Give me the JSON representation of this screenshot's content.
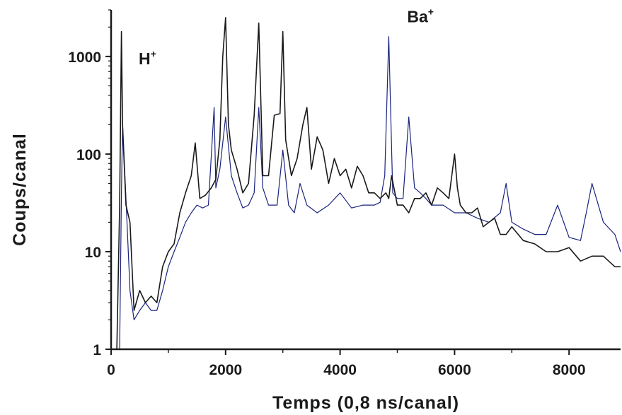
{
  "chart_data": {
    "type": "line",
    "title": "",
    "xlabel": "Temps (0,8 ns/canal)",
    "ylabel": "Coups/canal",
    "xlim": [
      0,
      8900
    ],
    "ylim": [
      1,
      3000
    ],
    "yscale": "log",
    "grid": false,
    "x_ticks": [
      0,
      2000,
      4000,
      6000,
      8000
    ],
    "x_tick_labels": [
      "0",
      "2000",
      "4000",
      "6000",
      "8000"
    ],
    "y_ticks": [
      1,
      10,
      100,
      1000
    ],
    "y_tick_labels": [
      "1",
      "10",
      "100",
      "1000"
    ],
    "annotations": [
      {
        "text": "H",
        "sup": "+",
        "x": 160,
        "y": 700
      },
      {
        "text": "Ba",
        "sup": "+",
        "x": 4850,
        "y": 1900
      }
    ],
    "series": [
      {
        "color": "#1a1a1a",
        "x": [
          0,
          100,
          150,
          180,
          200,
          260,
          330,
          400,
          500,
          600,
          700,
          800,
          900,
          1000,
          1100,
          1200,
          1300,
          1400,
          1470,
          1550,
          1650,
          1750,
          1830,
          1900,
          1950,
          2000,
          2050,
          2100,
          2200,
          2300,
          2400,
          2500,
          2580,
          2650,
          2750,
          2850,
          2950,
          3000,
          3050,
          3150,
          3250,
          3350,
          3420,
          3500,
          3600,
          3700,
          3800,
          3900,
          4000,
          4100,
          4200,
          4300,
          4400,
          4500,
          4600,
          4700,
          4800,
          4850,
          4900,
          5000,
          5100,
          5200,
          5300,
          5400,
          5500,
          5600,
          5700,
          5800,
          5900,
          6000,
          6050,
          6100,
          6200,
          6300,
          6400,
          6500,
          6600,
          6700,
          6800,
          6900,
          7000,
          7200,
          7400,
          7600,
          7800,
          8000,
          8200,
          8400,
          8600,
          8800,
          8900
        ],
        "values": [
          1,
          1,
          30,
          1800,
          200,
          30,
          20,
          2.5,
          4,
          3,
          3.5,
          3,
          7,
          10,
          12,
          25,
          40,
          60,
          130,
          35,
          38,
          45,
          55,
          140,
          1000,
          2500,
          200,
          110,
          70,
          40,
          50,
          250,
          2200,
          60,
          60,
          250,
          260,
          1800,
          140,
          60,
          90,
          200,
          300,
          70,
          150,
          110,
          50,
          90,
          60,
          70,
          45,
          75,
          60,
          40,
          40,
          35,
          40,
          35,
          60,
          30,
          30,
          25,
          35,
          35,
          40,
          30,
          45,
          40,
          35,
          100,
          45,
          30,
          25,
          25,
          28,
          18,
          20,
          22,
          15,
          15,
          18,
          13,
          12,
          10,
          10,
          11,
          8,
          9,
          9,
          7,
          7
        ]
      },
      {
        "color": "#1a237e",
        "x": [
          0,
          150,
          180,
          200,
          260,
          330,
          400,
          500,
          600,
          700,
          800,
          900,
          1000,
          1100,
          1200,
          1300,
          1400,
          1500,
          1600,
          1700,
          1800,
          1830,
          1900,
          2000,
          2100,
          2200,
          2300,
          2400,
          2500,
          2580,
          2650,
          2750,
          2900,
          3000,
          3100,
          3200,
          3300,
          3420,
          3600,
          3800,
          4000,
          4200,
          4400,
          4600,
          4700,
          4780,
          4850,
          4920,
          5000,
          5100,
          5200,
          5300,
          5400,
          5500,
          5600,
          5800,
          6000,
          6200,
          6400,
          6600,
          6800,
          6900,
          7000,
          7200,
          7400,
          7600,
          7800,
          8000,
          8200,
          8300,
          8400,
          8600,
          8800,
          8900
        ],
        "values": [
          1,
          1,
          40,
          200,
          35,
          4,
          2,
          2.5,
          3,
          2.5,
          2.5,
          4,
          7,
          10,
          14,
          20,
          25,
          30,
          28,
          30,
          300,
          45,
          70,
          240,
          60,
          40,
          28,
          30,
          40,
          300,
          45,
          30,
          30,
          110,
          30,
          25,
          50,
          30,
          25,
          30,
          40,
          28,
          30,
          30,
          32,
          60,
          1600,
          40,
          35,
          35,
          240,
          45,
          40,
          35,
          30,
          30,
          25,
          25,
          22,
          20,
          25,
          50,
          20,
          17,
          15,
          15,
          30,
          14,
          13,
          25,
          50,
          20,
          15,
          10
        ]
      }
    ]
  }
}
